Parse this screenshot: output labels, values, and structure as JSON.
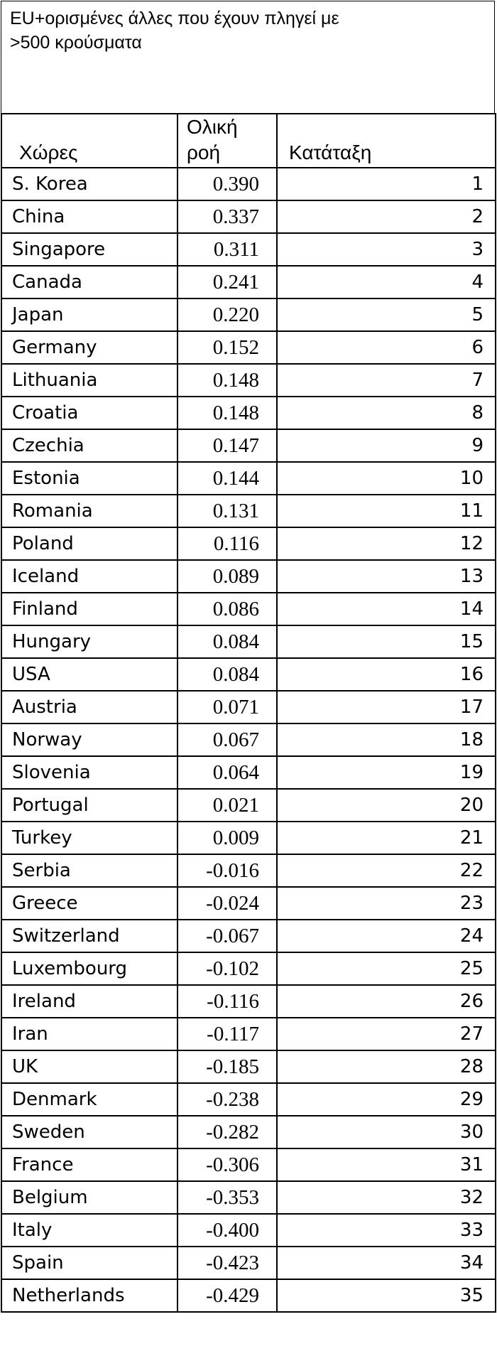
{
  "title": "EU+ορισμένες άλλες που έχουν πληγεί με\n>500 κρούσματα",
  "headers": {
    "country": "Χώρες",
    "flow_line1": "Ολική",
    "flow_line2": "ροή",
    "rank": "Κατάταξη"
  },
  "rows": [
    {
      "country": "S. Korea",
      "flow": "0.390",
      "rank": "1"
    },
    {
      "country": "China",
      "flow": "0.337",
      "rank": "2"
    },
    {
      "country": "Singapore",
      "flow": "0.311",
      "rank": "3"
    },
    {
      "country": "Canada",
      "flow": "0.241",
      "rank": "4"
    },
    {
      "country": "Japan",
      "flow": "0.220",
      "rank": "5"
    },
    {
      "country": "Germany",
      "flow": "0.152",
      "rank": "6"
    },
    {
      "country": "Lithuania",
      "flow": "0.148",
      "rank": "7"
    },
    {
      "country": "Croatia",
      "flow": "0.148",
      "rank": "8"
    },
    {
      "country": "Czechia",
      "flow": "0.147",
      "rank": "9"
    },
    {
      "country": "Estonia",
      "flow": "0.144",
      "rank": "10"
    },
    {
      "country": "Romania",
      "flow": "0.131",
      "rank": "11"
    },
    {
      "country": "Poland",
      "flow": "0.116",
      "rank": "12"
    },
    {
      "country": "Iceland",
      "flow": "0.089",
      "rank": "13"
    },
    {
      "country": "Finland",
      "flow": "0.086",
      "rank": "14"
    },
    {
      "country": "Hungary",
      "flow": "0.084",
      "rank": "15"
    },
    {
      "country": "USA",
      "flow": "0.084",
      "rank": "16"
    },
    {
      "country": "Austria",
      "flow": "0.071",
      "rank": "17"
    },
    {
      "country": "Norway",
      "flow": "0.067",
      "rank": "18"
    },
    {
      "country": "Slovenia",
      "flow": "0.064",
      "rank": "19"
    },
    {
      "country": "Portugal",
      "flow": "0.021",
      "rank": "20"
    },
    {
      "country": "Turkey",
      "flow": "0.009",
      "rank": "21"
    },
    {
      "country": "Serbia",
      "flow": "-0.016",
      "rank": "22"
    },
    {
      "country": "Greece",
      "flow": "-0.024",
      "rank": "23"
    },
    {
      "country": "Switzerland",
      "flow": "-0.067",
      "rank": "24"
    },
    {
      "country": "Luxembourg",
      "flow": "-0.102",
      "rank": "25"
    },
    {
      "country": "Ireland",
      "flow": "-0.116",
      "rank": "26"
    },
    {
      "country": "Iran",
      "flow": "-0.117",
      "rank": "27"
    },
    {
      "country": "UK",
      "flow": "-0.185",
      "rank": "28"
    },
    {
      "country": "Denmark",
      "flow": "-0.238",
      "rank": "29"
    },
    {
      "country": "Sweden",
      "flow": "-0.282",
      "rank": "30"
    },
    {
      "country": "France",
      "flow": "-0.306",
      "rank": "31"
    },
    {
      "country": "Belgium",
      "flow": "-0.353",
      "rank": "32"
    },
    {
      "country": "Italy",
      "flow": "-0.400",
      "rank": "33"
    },
    {
      "country": "Spain",
      "flow": "-0.423",
      "rank": "34"
    },
    {
      "country": "Netherlands",
      "flow": "-0.429",
      "rank": "35"
    }
  ]
}
